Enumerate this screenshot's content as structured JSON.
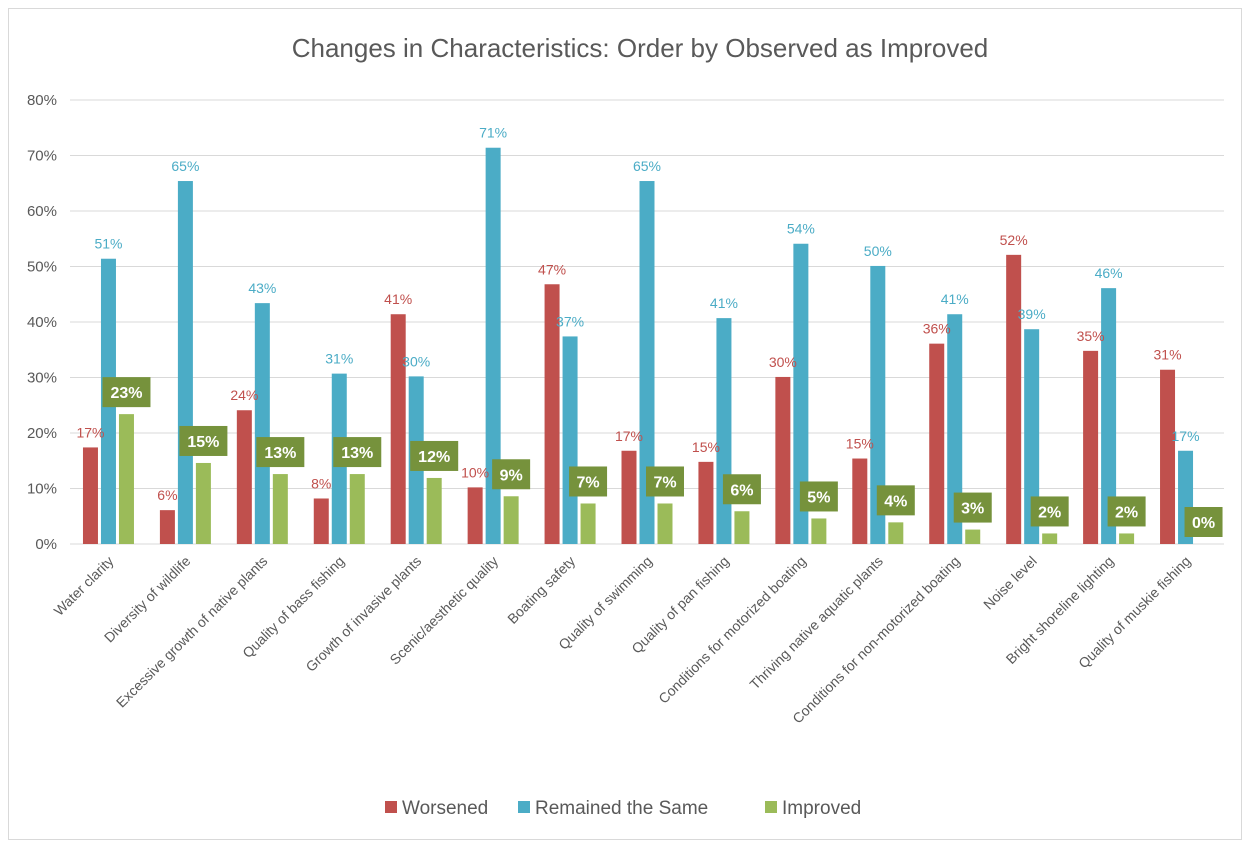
{
  "chart_data": {
    "type": "bar",
    "title": "Changes in Characteristics: Order by Observed as Improved",
    "xlabel": "",
    "ylabel": "",
    "ylim": [
      0,
      80
    ],
    "yticks": [
      "0%",
      "10%",
      "20%",
      "30%",
      "40%",
      "50%",
      "60%",
      "70%",
      "80%"
    ],
    "grid": true,
    "legend_position": "bottom",
    "categories": [
      "Water clarity",
      "Diversity of wildlife",
      "Excessive growth of native plants",
      "Quality of bass fishing",
      "Growth of invasive plants",
      "Scenic/aesthetic quality",
      "Boating safety",
      "Quality of swimming",
      "Quality of pan fishing",
      "Conditions for motorized boating",
      "Thriving native aquatic plants",
      "Conditions for non-motorized boating",
      "Noise level",
      "Bright shoreline lighting",
      "Quality of muskie fishing"
    ],
    "series": [
      {
        "name": "Worsened",
        "color": "#c0504d",
        "values": [
          17.4,
          6.1,
          24.1,
          8.2,
          41.4,
          10.2,
          46.8,
          16.8,
          14.8,
          30.1,
          15.4,
          36.1,
          52.1,
          34.8,
          31.4
        ],
        "labels": [
          "17%",
          "6%",
          "24%",
          "8%",
          "41%",
          "10%",
          "47%",
          "17%",
          "15%",
          "30%",
          "15%",
          "36%",
          "52%",
          "35%",
          "31%"
        ]
      },
      {
        "name": "Remained the Same",
        "color": "#4bacc6",
        "values": [
          51.4,
          65.4,
          43.4,
          30.7,
          30.2,
          71.4,
          37.4,
          65.4,
          40.7,
          54.1,
          50.1,
          41.4,
          38.7,
          46.1,
          16.8
        ],
        "labels": [
          "51%",
          "65%",
          "43%",
          "31%",
          "30%",
          "71%",
          "37%",
          "65%",
          "41%",
          "54%",
          "50%",
          "41%",
          "39%",
          "46%",
          "17%"
        ]
      },
      {
        "name": "Improved",
        "color": "#9bbb59",
        "label_bg": "#76923c",
        "values": [
          23.4,
          14.6,
          12.6,
          12.6,
          11.9,
          8.6,
          7.3,
          7.3,
          5.9,
          4.6,
          3.9,
          2.6,
          1.9,
          1.9,
          0.0
        ],
        "labels": [
          "23%",
          "15%",
          "13%",
          "13%",
          "12%",
          "9%",
          "7%",
          "7%",
          "6%",
          "5%",
          "4%",
          "3%",
          "2%",
          "2%",
          "0%"
        ]
      }
    ]
  }
}
